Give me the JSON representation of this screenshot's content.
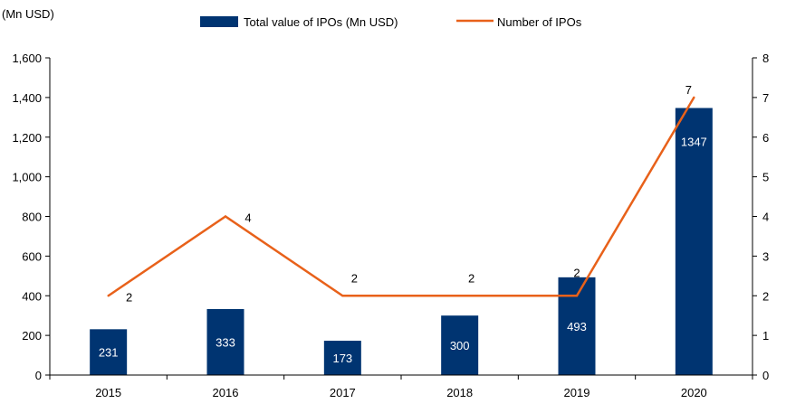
{
  "chart_data": {
    "type": "bar",
    "unit_label": "(Mn USD)",
    "categories": [
      "2015",
      "2016",
      "2017",
      "2018",
      "2019",
      "2020"
    ],
    "series": [
      {
        "name": "Total value of IPOs (Mn USD)",
        "type": "bar",
        "axis": "left",
        "color": "#003471",
        "values": [
          231,
          333,
          173,
          300,
          493,
          1347
        ],
        "labels": [
          "231",
          "333",
          "173",
          "300",
          "493",
          "1347"
        ]
      },
      {
        "name": "Number of IPOs",
        "type": "line",
        "axis": "right",
        "color": "#E8611A",
        "values": [
          2,
          4,
          2,
          2,
          2,
          7
        ],
        "labels": [
          "2",
          "4",
          "2",
          "2",
          "2",
          "7"
        ]
      }
    ],
    "y_left": {
      "lim": [
        0,
        1600
      ],
      "ticks": [
        0,
        200,
        400,
        600,
        800,
        1000,
        1200,
        1400,
        1600
      ],
      "tick_labels": [
        "0",
        "200",
        "400",
        "600",
        "800",
        "1,000",
        "1,200",
        "1,400",
        "1,600"
      ]
    },
    "y_right": {
      "lim": [
        0,
        8
      ],
      "ticks": [
        0,
        1,
        2,
        3,
        4,
        5,
        6,
        7,
        8
      ],
      "tick_labels": [
        "0",
        "1",
        "2",
        "3",
        "4",
        "5",
        "6",
        "7",
        "8"
      ]
    },
    "grid": false,
    "legend_position": "top"
  }
}
